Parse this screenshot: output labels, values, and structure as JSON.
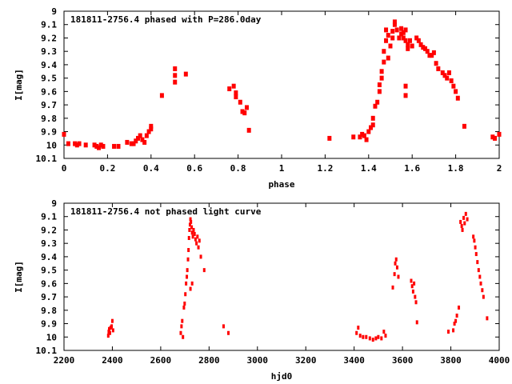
{
  "charts": [
    {
      "type": "scatter",
      "title": "181811-2756.4 phased with P=286.0day",
      "xlabel": "phase",
      "ylabel": "I[mag]",
      "x_ticks": [
        "0",
        "0.2",
        "0.4",
        "0.6",
        "0.8",
        "1",
        "1.2",
        "1.4",
        "1.6",
        "1.8",
        "2"
      ],
      "y_ticks": [
        "9",
        "9.1",
        "9.2",
        "9.3",
        "9.4",
        "9.5",
        "9.6",
        "9.7",
        "9.8",
        "9.9",
        "10",
        "10.1"
      ]
    },
    {
      "type": "scatter",
      "title": "181811-2756.4 not phased light curve",
      "xlabel": "hjd0",
      "ylabel": "I[mag]",
      "x_ticks": [
        "2200",
        "2400",
        "2600",
        "2800",
        "3000",
        "3200",
        "3400",
        "3600",
        "3800",
        "4000"
      ],
      "y_ticks": [
        "9",
        "9.1",
        "9.2",
        "9.3",
        "9.4",
        "9.5",
        "9.6",
        "9.7",
        "9.8",
        "9.9",
        "10",
        "10.1"
      ]
    }
  ],
  "chart_data": [
    {
      "type": "scatter",
      "title": "181811-2756.4 phased with P=286.0day",
      "xlabel": "phase",
      "ylabel": "I[mag]",
      "xlim": [
        0,
        2
      ],
      "ylim": [
        10.1,
        9
      ],
      "y_inverted": true,
      "grid": false,
      "marker_color": "#ff0000",
      "points": [
        [
          0.0,
          9.92
        ],
        [
          0.02,
          9.99
        ],
        [
          0.05,
          9.99
        ],
        [
          0.06,
          10.0
        ],
        [
          0.07,
          9.99
        ],
        [
          0.1,
          10.0
        ],
        [
          0.14,
          10.0
        ],
        [
          0.15,
          10.01
        ],
        [
          0.16,
          10.02
        ],
        [
          0.17,
          10.0
        ],
        [
          0.18,
          10.01
        ],
        [
          0.23,
          10.01
        ],
        [
          0.25,
          10.01
        ],
        [
          0.29,
          9.98
        ],
        [
          0.31,
          9.99
        ],
        [
          0.32,
          9.99
        ],
        [
          0.33,
          9.97
        ],
        [
          0.34,
          9.95
        ],
        [
          0.35,
          9.93
        ],
        [
          0.36,
          9.96
        ],
        [
          0.37,
          9.98
        ],
        [
          0.38,
          9.93
        ],
        [
          0.39,
          9.9
        ],
        [
          0.4,
          9.88
        ],
        [
          0.4,
          9.86
        ],
        [
          0.45,
          9.63
        ],
        [
          0.51,
          9.43
        ],
        [
          0.51,
          9.48
        ],
        [
          0.51,
          9.53
        ],
        [
          0.56,
          9.47
        ],
        [
          0.76,
          9.58
        ],
        [
          0.78,
          9.56
        ],
        [
          0.79,
          9.64
        ],
        [
          0.79,
          9.61
        ],
        [
          0.81,
          9.68
        ],
        [
          0.82,
          9.75
        ],
        [
          0.83,
          9.76
        ],
        [
          0.84,
          9.72
        ],
        [
          0.85,
          9.89
        ],
        [
          1.22,
          9.95
        ],
        [
          1.33,
          9.94
        ],
        [
          1.36,
          9.94
        ],
        [
          1.37,
          9.92
        ],
        [
          1.38,
          9.93
        ],
        [
          1.39,
          9.96
        ],
        [
          1.4,
          9.9
        ],
        [
          1.41,
          9.87
        ],
        [
          1.42,
          9.8
        ],
        [
          1.42,
          9.85
        ],
        [
          1.43,
          9.71
        ],
        [
          1.44,
          9.68
        ],
        [
          1.45,
          9.6
        ],
        [
          1.45,
          9.55
        ],
        [
          1.46,
          9.5
        ],
        [
          1.46,
          9.45
        ],
        [
          1.47,
          9.38
        ],
        [
          1.47,
          9.3
        ],
        [
          1.48,
          9.22
        ],
        [
          1.48,
          9.14
        ],
        [
          1.49,
          9.18
        ],
        [
          1.49,
          9.35
        ],
        [
          1.5,
          9.26
        ],
        [
          1.51,
          9.15
        ],
        [
          1.51,
          9.2
        ],
        [
          1.52,
          9.1
        ],
        [
          1.52,
          9.08
        ],
        [
          1.53,
          9.14
        ],
        [
          1.54,
          9.2
        ],
        [
          1.55,
          9.13
        ],
        [
          1.55,
          9.17
        ],
        [
          1.56,
          9.16
        ],
        [
          1.56,
          9.2
        ],
        [
          1.57,
          9.14
        ],
        [
          1.57,
          9.22
        ],
        [
          1.58,
          9.25
        ],
        [
          1.58,
          9.28
        ],
        [
          1.59,
          9.22
        ],
        [
          1.6,
          9.26
        ],
        [
          1.57,
          9.56
        ],
        [
          1.57,
          9.63
        ],
        [
          1.62,
          9.2
        ],
        [
          1.63,
          9.22
        ],
        [
          1.64,
          9.25
        ],
        [
          1.65,
          9.27
        ],
        [
          1.66,
          9.28
        ],
        [
          1.67,
          9.3
        ],
        [
          1.68,
          9.33
        ],
        [
          1.69,
          9.33
        ],
        [
          1.7,
          9.31
        ],
        [
          1.71,
          9.39
        ],
        [
          1.72,
          9.43
        ],
        [
          1.74,
          9.46
        ],
        [
          1.75,
          9.48
        ],
        [
          1.76,
          9.5
        ],
        [
          1.77,
          9.46
        ],
        [
          1.78,
          9.52
        ],
        [
          1.79,
          9.56
        ],
        [
          1.8,
          9.6
        ],
        [
          1.81,
          9.65
        ],
        [
          1.84,
          9.86
        ],
        [
          1.97,
          9.94
        ],
        [
          1.98,
          9.95
        ],
        [
          2.0,
          9.92
        ]
      ]
    },
    {
      "type": "scatter",
      "title": "181811-2756.4 not phased light curve",
      "xlabel": "hjd0",
      "ylabel": "I[mag]",
      "xlim": [
        2200,
        4000
      ],
      "ylim": [
        10.1,
        9
      ],
      "y_inverted": true,
      "grid": false,
      "marker_color": "#ff0000",
      "points": [
        [
          2383,
          9.99
        ],
        [
          2385,
          9.96
        ],
        [
          2387,
          9.94
        ],
        [
          2390,
          9.97
        ],
        [
          2393,
          9.93
        ],
        [
          2397,
          9.92
        ],
        [
          2400,
          9.88
        ],
        [
          2403,
          9.95
        ],
        [
          2683,
          9.97
        ],
        [
          2686,
          9.92
        ],
        [
          2689,
          9.88
        ],
        [
          2692,
          10.0
        ],
        [
          2696,
          9.78
        ],
        [
          2699,
          9.75
        ],
        [
          2702,
          9.68
        ],
        [
          2705,
          9.6
        ],
        [
          2708,
          9.55
        ],
        [
          2710,
          9.5
        ],
        [
          2713,
          9.42
        ],
        [
          2715,
          9.35
        ],
        [
          2717,
          9.26
        ],
        [
          2719,
          9.2
        ],
        [
          2721,
          9.16
        ],
        [
          2723,
          9.12
        ],
        [
          2725,
          9.14
        ],
        [
          2728,
          9.18
        ],
        [
          2730,
          9.22
        ],
        [
          2733,
          9.25
        ],
        [
          2736,
          9.2
        ],
        [
          2740,
          9.23
        ],
        [
          2744,
          9.27
        ],
        [
          2748,
          9.3
        ],
        [
          2752,
          9.25
        ],
        [
          2756,
          9.33
        ],
        [
          2760,
          9.28
        ],
        [
          2766,
          9.4
        ],
        [
          2780,
          9.5
        ],
        [
          2730,
          9.6
        ],
        [
          2723,
          9.64
        ],
        [
          2860,
          9.92
        ],
        [
          2880,
          9.97
        ],
        [
          3410,
          9.97
        ],
        [
          3417,
          9.93
        ],
        [
          3425,
          9.99
        ],
        [
          3437,
          10.0
        ],
        [
          3450,
          10.0
        ],
        [
          3465,
          10.01
        ],
        [
          3478,
          10.02
        ],
        [
          3490,
          10.01
        ],
        [
          3500,
          10.0
        ],
        [
          3513,
          10.01
        ],
        [
          3523,
          9.96
        ],
        [
          3530,
          9.99
        ],
        [
          3560,
          9.63
        ],
        [
          3567,
          9.53
        ],
        [
          3570,
          9.45
        ],
        [
          3574,
          9.42
        ],
        [
          3578,
          9.48
        ],
        [
          3583,
          9.55
        ],
        [
          3636,
          9.58
        ],
        [
          3640,
          9.62
        ],
        [
          3644,
          9.66
        ],
        [
          3648,
          9.6
        ],
        [
          3652,
          9.7
        ],
        [
          3656,
          9.74
        ],
        [
          3660,
          9.89
        ],
        [
          3790,
          9.96
        ],
        [
          3810,
          9.95
        ],
        [
          3815,
          9.9
        ],
        [
          3820,
          9.88
        ],
        [
          3825,
          9.84
        ],
        [
          3833,
          9.78
        ],
        [
          3840,
          9.14
        ],
        [
          3845,
          9.17
        ],
        [
          3848,
          9.2
        ],
        [
          3853,
          9.11
        ],
        [
          3857,
          9.15
        ],
        [
          3862,
          9.08
        ],
        [
          3868,
          9.12
        ],
        [
          3893,
          9.25
        ],
        [
          3897,
          9.28
        ],
        [
          3901,
          9.33
        ],
        [
          3905,
          9.38
        ],
        [
          3910,
          9.44
        ],
        [
          3915,
          9.5
        ],
        [
          3920,
          9.55
        ],
        [
          3924,
          9.6
        ],
        [
          3930,
          9.65
        ],
        [
          3935,
          9.7
        ],
        [
          3950,
          9.86
        ]
      ]
    }
  ]
}
